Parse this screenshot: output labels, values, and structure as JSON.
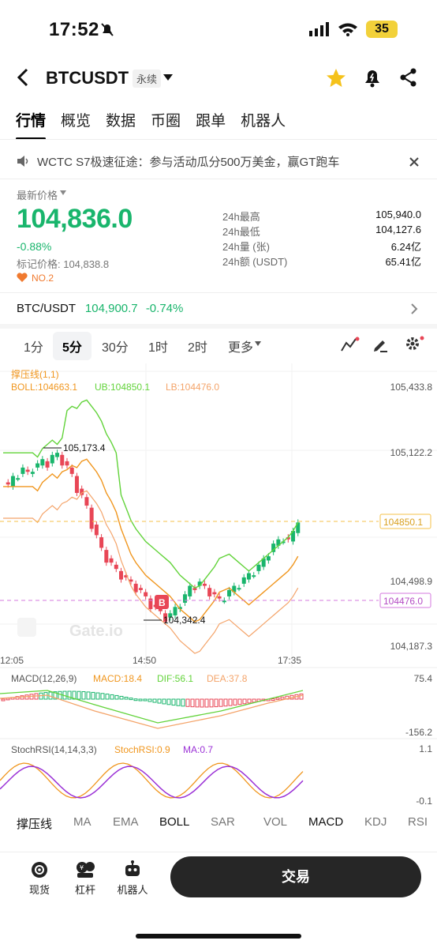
{
  "status_bar": {
    "time": "17:52",
    "battery": "35"
  },
  "header": {
    "symbol": "BTCUSDT",
    "contract_tag": "永续"
  },
  "tabs": [
    {
      "label": "行情",
      "active": true
    },
    {
      "label": "概览"
    },
    {
      "label": "数据"
    },
    {
      "label": "币圈"
    },
    {
      "label": "跟单"
    },
    {
      "label": "机器人"
    }
  ],
  "notice": {
    "text": "WCTC S7极速征途：参与活动瓜分500万美金，赢GT跑车"
  },
  "ticker": {
    "price_label": "最新价格",
    "price": "104,836.0",
    "change": "-0.88%",
    "mark_price": "标记价格: 104,838.8",
    "rank": "NO.2",
    "stats": [
      {
        "k": "24h最高",
        "v": "105,940.0"
      },
      {
        "k": "24h最低",
        "v": "104,127.6"
      },
      {
        "k": "24h量 (张)",
        "v": "6.24亿"
      },
      {
        "k": "24h额 (USDT)",
        "v": "65.41亿"
      }
    ]
  },
  "spot_pair": {
    "name": "BTC/USDT",
    "price": "104,900.7",
    "change": "-0.74%"
  },
  "intervals": [
    {
      "label": "1分"
    },
    {
      "label": "5分",
      "active": true
    },
    {
      "label": "30分"
    },
    {
      "label": "1时"
    },
    {
      "label": "2时"
    },
    {
      "label": "更多"
    }
  ],
  "chart": {
    "indicator_title": "撑压线(1,1)",
    "boll": "BOLL:104663.1",
    "ub": "UB:104850.1",
    "lb": "LB:104476.0",
    "y_ticks": [
      "105,433.8",
      "105,122.2",
      "104,498.9",
      "104,187.3"
    ],
    "ub_tag": "104850.1",
    "lb_tag": "104476.0",
    "high_mark": "105,173.4",
    "low_mark": "104,342.4",
    "buy_marker": "B",
    "x_ticks": [
      "12:05",
      "14:50",
      "17:35"
    ],
    "watermark": "Gate.io",
    "macd_title": "MACD(12,26,9)",
    "macd_val": "MACD:18.4",
    "dif": "DIF:56.1",
    "dea": "DEA:37.8",
    "macd_top": "75.4",
    "macd_bottom": "-156.2",
    "stoch_title": "StochRSI(14,14,3,3)",
    "stoch_val": "StochRSI:0.9",
    "stoch_ma": "MA:0.7",
    "stoch_top": "1.1",
    "stoch_bottom": "-0.1",
    "colors": {
      "up": "#19b56c",
      "down": "#e84656",
      "boll_mid": "#f0961e",
      "ub": "#62d33a",
      "lb": "#f4a46a",
      "ma_purple": "#9b32d6"
    }
  },
  "indicator_tabs": [
    {
      "label": "撑压线",
      "on": true
    },
    {
      "label": "MA"
    },
    {
      "label": "EMA"
    },
    {
      "label": "BOLL",
      "on": true
    },
    {
      "label": "SAR"
    },
    {
      "label": "VOL"
    },
    {
      "label": "MACD",
      "on": true
    },
    {
      "label": "KDJ"
    },
    {
      "label": "RSI"
    }
  ],
  "bottom_nav": [
    {
      "label": "现货",
      "icon": "spot-icon"
    },
    {
      "label": "杠杆",
      "icon": "leverage-icon"
    },
    {
      "label": "机器人",
      "icon": "robot-icon"
    }
  ],
  "trade_button": "交易"
}
